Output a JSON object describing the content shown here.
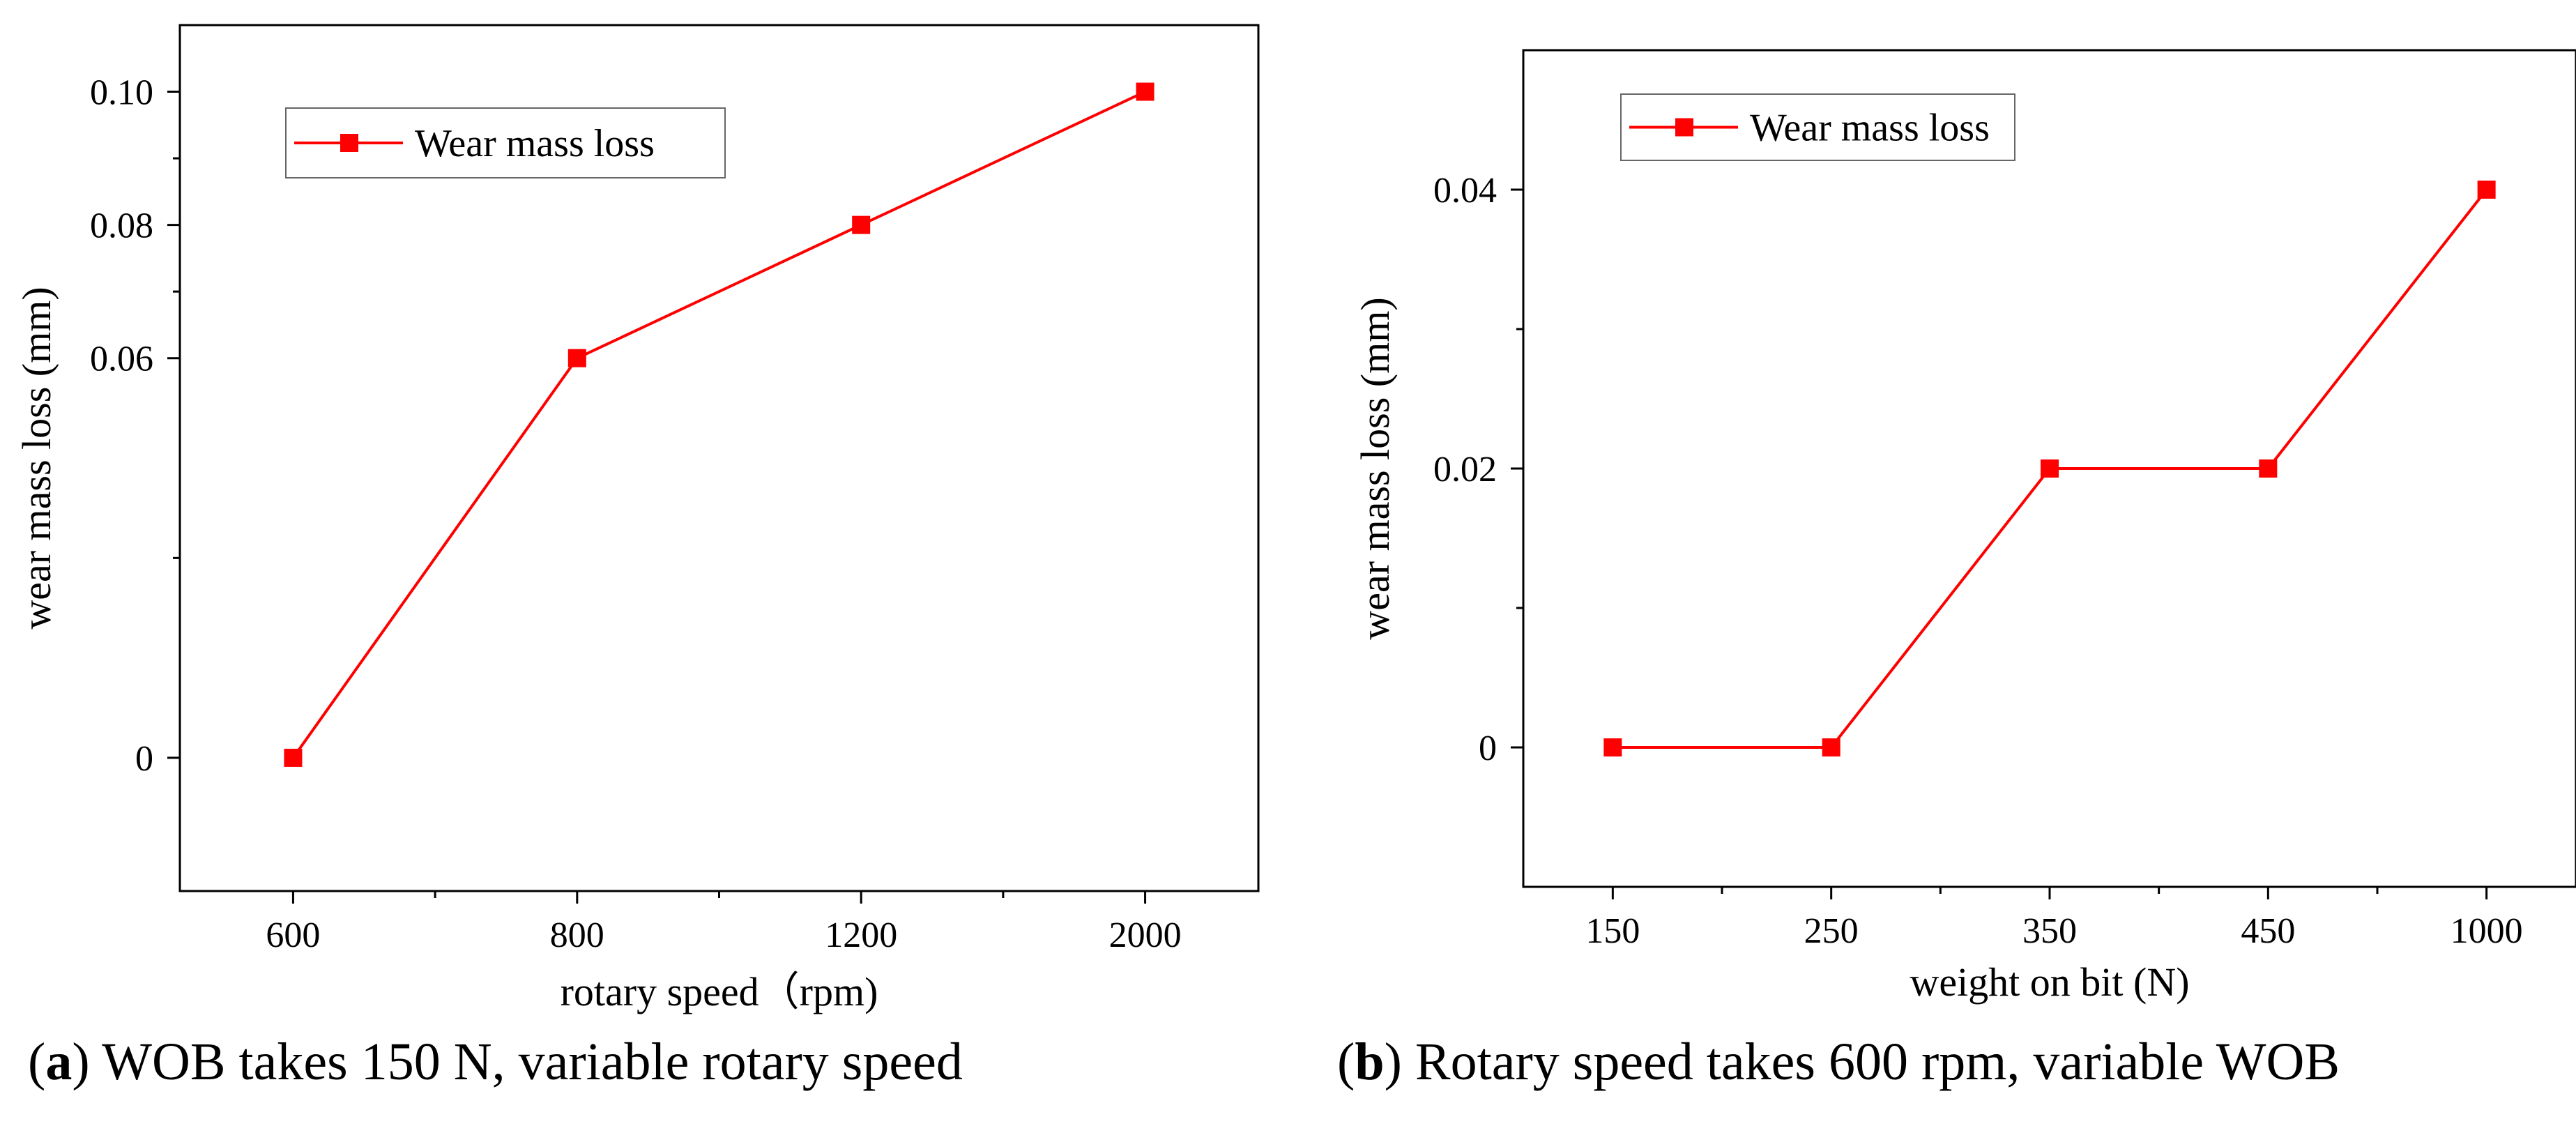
{
  "chart_data": [
    {
      "id": "a",
      "type": "line",
      "xlabel": "rotary speed（rpm)",
      "ylabel": "wear mass loss (mm)",
      "categories": [
        "600",
        "800",
        "1200",
        "2000"
      ],
      "series": [
        {
          "name": "Wear mass loss",
          "values": [
            0,
            0.06,
            0.08,
            0.1
          ]
        }
      ],
      "ylim": [
        -0.02,
        0.11
      ],
      "yticks": [
        0,
        0.06,
        0.08,
        0.1
      ],
      "ytick_labels": [
        "0",
        "0.06",
        "0.08",
        "0.10"
      ],
      "legend_position": "top-left",
      "grid": false,
      "color": "#ff0000",
      "caption_letter": "a",
      "caption_text": ") WOB takes 150 N, variable rotary speed"
    },
    {
      "id": "b",
      "type": "line",
      "xlabel": "weight on bit (N)",
      "ylabel": "wear mass loss (mm)",
      "categories": [
        "150",
        "250",
        "350",
        "450",
        "1000"
      ],
      "series": [
        {
          "name": "Wear mass loss",
          "values": [
            0,
            0,
            0.02,
            0.02,
            0.04
          ]
        }
      ],
      "ylim": [
        -0.01,
        0.05
      ],
      "yticks": [
        0,
        0.02,
        0.04
      ],
      "ytick_labels": [
        "0",
        "0.02",
        "0.04"
      ],
      "legend_position": "top-left",
      "grid": false,
      "color": "#ff0000",
      "caption_letter": "b",
      "caption_text": ") Rotary speed takes 600 rpm, variable WOB"
    }
  ]
}
